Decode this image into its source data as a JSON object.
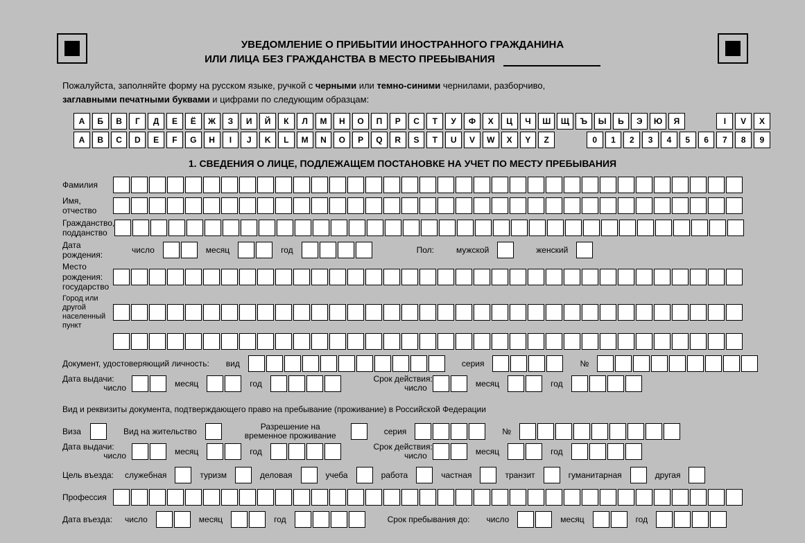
{
  "title": {
    "line1": "УВЕДОМЛЕНИЕ О ПРИБЫТИИ ИНОСТРАННОГО ГРАЖДАНИНА",
    "line2": "ИЛИ ЛИЦА БЕЗ ГРАЖДАНСТВА В МЕСТО ПРЕБЫВАНИЯ"
  },
  "instructions": {
    "pre": "Пожалуйста, заполняйте форму на русском языке, ручкой с ",
    "bold1": "черными",
    "mid1": " или ",
    "bold2": "темно-синими",
    "mid2": " чернилами, разборчиво, ",
    "bold3": "заглавными печатными буквами",
    "post": " и цифрами по следующим образцам:"
  },
  "sample_row1_left": [
    "А",
    "Б",
    "В",
    "Г",
    "Д",
    "Е",
    "Ё",
    "Ж",
    "З",
    "И",
    "Й",
    "К",
    "Л",
    "М",
    "Н",
    "О",
    "П",
    "Р",
    "С",
    "Т",
    "У",
    "Ф",
    "Х",
    "Ц",
    "Ч",
    "Ш",
    "Щ",
    "Ъ",
    "Ы",
    "Ь",
    "Э",
    "Ю",
    "Я"
  ],
  "sample_row1_right": [
    "I",
    "V",
    "X"
  ],
  "sample_row2_left": [
    "A",
    "B",
    "C",
    "D",
    "E",
    "F",
    "G",
    "H",
    "I",
    "J",
    "K",
    "L",
    "M",
    "N",
    "O",
    "P",
    "Q",
    "R",
    "S",
    "T",
    "U",
    "V",
    "W",
    "X",
    "Y",
    "Z"
  ],
  "sample_row2_right": [
    "0",
    "1",
    "2",
    "3",
    "4",
    "5",
    "6",
    "7",
    "8",
    "9"
  ],
  "section1_header": "1. СВЕДЕНИЯ О ЛИЦЕ, ПОДЛЕЖАЩЕМ ПОСТАНОВКЕ НА УЧЕТ ПО МЕСТУ ПРЕБЫВАНИЯ",
  "labels": {
    "surname": "Фамилия",
    "name_patronymic_l1": "Имя,",
    "name_patronymic_l2": "отчество",
    "citizenship_l1": "Гражданство,",
    "citizenship_l2": "подданство",
    "birthdate_l1": "Дата",
    "birthdate_l2": "рождения:",
    "day": "число",
    "month": "месяц",
    "year": "год",
    "sex": "Пол:",
    "male": "мужской",
    "female": "женский",
    "birthplace": "Место рождения:",
    "state": "государство",
    "city_l1": "Город или другой",
    "city_l2": "населенный пункт",
    "id_doc": "Документ, удостоверяющий личность:",
    "type": "вид",
    "series": "серия",
    "number": "№",
    "issue_date": "Дата выдачи:",
    "valid_until": "Срок действия:",
    "residence_doc": "Вид и реквизиты документа, подтверждающего право на пребывание (проживание) в Российской Федерации",
    "visa": "Виза",
    "residence_permit": "Вид на жительство",
    "temp_residence_l1": "Разрешение на",
    "temp_residence_l2": "временное проживание",
    "purpose": "Цель въезда:",
    "p_official": "служебная",
    "p_tourism": "туризм",
    "p_business": "деловая",
    "p_study": "учеба",
    "p_work": "работа",
    "p_private": "частная",
    "p_transit": "транзит",
    "p_humanitarian": "гуманитарная",
    "p_other": "другая",
    "profession": "Профессия",
    "entry_date": "Дата въезда:",
    "stay_until": "Срок пребывания до:"
  },
  "cell_counts": {
    "surname": 35,
    "name": 35,
    "citizenship": 35,
    "state": 35,
    "city1": 35,
    "city2": 35,
    "id_type": 11,
    "id_series": 4,
    "id_number": 9,
    "residence_series": 4,
    "residence_number": 9,
    "profession": 35
  },
  "colors": {
    "page_bg": "#bfbfbf",
    "cell_bg": "#ffffff",
    "border": "#000000",
    "text": "#000000"
  }
}
